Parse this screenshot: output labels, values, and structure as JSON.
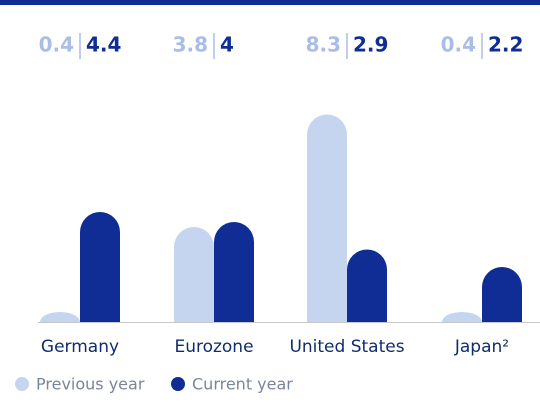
{
  "chart_data": {
    "type": "bar",
    "categories": [
      "Germany",
      "Eurozone",
      "United States",
      "Japan²"
    ],
    "series": [
      {
        "name": "Previous year",
        "color": "#c5d5f0",
        "values": [
          0.4,
          3.8,
          8.3,
          0.4
        ]
      },
      {
        "name": "Current year",
        "color": "#0f2d95",
        "values": [
          4.4,
          4.0,
          2.9,
          2.2
        ]
      }
    ]
  }
}
